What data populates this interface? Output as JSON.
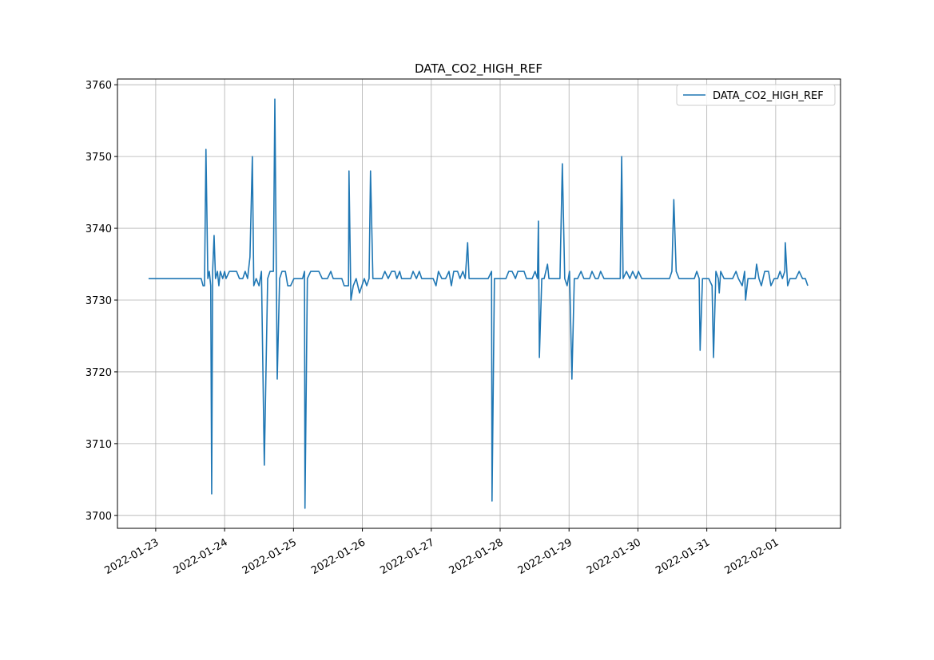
{
  "chart_data": {
    "type": "line",
    "title": "DATA_CO2_HIGH_REF",
    "x": [
      "2022-01-22T21:30",
      "2022-01-23T15:50",
      "2022-01-23T16:30",
      "2022-01-23T17:00",
      "2022-01-23T17:30",
      "2022-01-23T18:10",
      "2022-01-23T18:40",
      "2022-01-23T19:10",
      "2022-01-23T19:30",
      "2022-01-23T19:50",
      "2022-01-23T20:20",
      "2022-01-23T20:50",
      "2022-01-23T21:30",
      "2022-01-23T22:00",
      "2022-01-23T22:30",
      "2022-01-23T23:20",
      "2022-01-24T00:00",
      "2022-01-24T00:30",
      "2022-01-24T01:40",
      "2022-01-24T04:10",
      "2022-01-24T05:10",
      "2022-01-24T06:20",
      "2022-01-24T07:10",
      "2022-01-24T08:00",
      "2022-01-24T08:50",
      "2022-01-24T09:40",
      "2022-01-24T10:10",
      "2022-01-24T11:00",
      "2022-01-24T12:00",
      "2022-01-24T12:50",
      "2022-01-24T13:50",
      "2022-01-24T15:00",
      "2022-01-24T15:50",
      "2022-01-24T17:00",
      "2022-01-24T17:30",
      "2022-01-24T18:20",
      "2022-01-24T19:10",
      "2022-01-24T20:00",
      "2022-01-24T21:10",
      "2022-01-24T22:00",
      "2022-01-24T23:00",
      "2022-01-25T00:10",
      "2022-01-25T03:10",
      "2022-01-25T03:50",
      "2022-01-25T04:00",
      "2022-01-25T04:50",
      "2022-01-25T06:00",
      "2022-01-25T08:50",
      "2022-01-25T10:00",
      "2022-01-25T11:50",
      "2022-01-25T13:00",
      "2022-01-25T13:50",
      "2022-01-25T16:50",
      "2022-01-25T17:40",
      "2022-01-25T19:10",
      "2022-01-25T19:20",
      "2022-01-25T20:00",
      "2022-01-25T20:50",
      "2022-01-25T21:50",
      "2022-01-25T23:00",
      "2022-01-25T23:50",
      "2022-01-26T00:40",
      "2022-01-26T01:30",
      "2022-01-26T02:20",
      "2022-01-26T02:50",
      "2022-01-26T03:40",
      "2022-01-26T06:50",
      "2022-01-26T07:50",
      "2022-01-26T09:00",
      "2022-01-26T10:10",
      "2022-01-26T11:20",
      "2022-01-26T12:00",
      "2022-01-26T13:00",
      "2022-01-26T13:40",
      "2022-01-26T16:50",
      "2022-01-26T17:40",
      "2022-01-26T18:50",
      "2022-01-26T19:50",
      "2022-01-26T20:40",
      "2022-01-27T00:40",
      "2022-01-27T01:40",
      "2022-01-27T02:30",
      "2022-01-27T03:40",
      "2022-01-27T05:00",
      "2022-01-27T06:10",
      "2022-01-27T07:00",
      "2022-01-27T07:50",
      "2022-01-27T09:10",
      "2022-01-27T10:00",
      "2022-01-27T11:00",
      "2022-01-27T11:50",
      "2022-01-27T12:40",
      "2022-01-27T13:10",
      "2022-01-27T19:50",
      "2022-01-27T21:00",
      "2022-01-27T21:10",
      "2022-01-27T22:00",
      "2022-01-28T02:00",
      "2022-01-28T03:00",
      "2022-01-28T04:10",
      "2022-01-28T05:20",
      "2022-01-28T06:10",
      "2022-01-28T08:20",
      "2022-01-28T09:10",
      "2022-01-28T11:10",
      "2022-01-28T12:10",
      "2022-01-28T13:00",
      "2022-01-28T13:20",
      "2022-01-28T13:40",
      "2022-01-28T14:30",
      "2022-01-28T15:20",
      "2022-01-28T16:30",
      "2022-01-28T17:00",
      "2022-01-28T20:50",
      "2022-01-28T21:40",
      "2022-01-28T22:30",
      "2022-01-28T23:20",
      "2022-01-29T00:10",
      "2022-01-29T01:00",
      "2022-01-29T01:50",
      "2022-01-29T03:00",
      "2022-01-29T04:10",
      "2022-01-29T05:10",
      "2022-01-29T07:10",
      "2022-01-29T08:00",
      "2022-01-29T09:10",
      "2022-01-29T10:10",
      "2022-01-29T11:00",
      "2022-01-29T12:10",
      "2022-01-29T17:50",
      "2022-01-29T18:20",
      "2022-01-29T18:50",
      "2022-01-29T20:00",
      "2022-01-29T21:10",
      "2022-01-29T22:10",
      "2022-01-29T23:20",
      "2022-01-30T00:10",
      "2022-01-30T01:20",
      "2022-01-30T11:00",
      "2022-01-30T11:50",
      "2022-01-30T12:30",
      "2022-01-30T13:20",
      "2022-01-30T14:20",
      "2022-01-30T19:40",
      "2022-01-30T20:30",
      "2022-01-30T21:20",
      "2022-01-30T21:40",
      "2022-01-30T22:30",
      "2022-01-31T00:40",
      "2022-01-31T01:50",
      "2022-01-31T02:20",
      "2022-01-31T03:10",
      "2022-01-31T04:00",
      "2022-01-31T04:20",
      "2022-01-31T04:50",
      "2022-01-31T06:00",
      "2022-01-31T09:00",
      "2022-01-31T10:10",
      "2022-01-31T11:00",
      "2022-01-31T12:20",
      "2022-01-31T13:10",
      "2022-01-31T13:30",
      "2022-01-31T14:20",
      "2022-01-31T16:50",
      "2022-01-31T17:20",
      "2022-01-31T18:10",
      "2022-01-31T19:00",
      "2022-01-31T20:10",
      "2022-01-31T21:30",
      "2022-01-31T22:20",
      "2022-01-31T23:30",
      "2022-02-01T00:40",
      "2022-02-01T01:30",
      "2022-02-01T02:20",
      "2022-02-01T03:10",
      "2022-02-01T03:20",
      "2022-02-01T04:10",
      "2022-02-01T05:00",
      "2022-02-01T07:00",
      "2022-02-01T08:10",
      "2022-02-01T09:20",
      "2022-02-01T10:20",
      "2022-02-01T11:10"
    ],
    "series": [
      {
        "name": "DATA_CO2_HIGH_REF",
        "color": "#1f77b4",
        "values": [
          3733,
          3733,
          3732,
          3732,
          3751,
          3733,
          3734,
          3732,
          3703,
          3734,
          3739,
          3733,
          3734,
          3732,
          3734,
          3733,
          3734,
          3733,
          3734,
          3734,
          3733,
          3733,
          3734,
          3733,
          3736,
          3750,
          3732,
          3733,
          3732,
          3734,
          3707,
          3733,
          3734,
          3734,
          3758,
          3719,
          3733,
          3734,
          3734,
          3732,
          3732,
          3733,
          3733,
          3734,
          3701,
          3733,
          3734,
          3734,
          3733,
          3733,
          3734,
          3733,
          3733,
          3732,
          3732,
          3748,
          3730,
          3732,
          3733,
          3731,
          3732,
          3733,
          3732,
          3733,
          3748,
          3733,
          3733,
          3734,
          3733,
          3734,
          3734,
          3733,
          3734,
          3733,
          3733,
          3734,
          3733,
          3734,
          3733,
          3733,
          3732,
          3734,
          3733,
          3733,
          3734,
          3732,
          3734,
          3734,
          3733,
          3734,
          3733,
          3738,
          3733,
          3733,
          3734,
          3702,
          3733,
          3733,
          3734,
          3734,
          3733,
          3734,
          3734,
          3733,
          3733,
          3734,
          3733,
          3741,
          3722,
          3733,
          3733,
          3735,
          3733,
          3733,
          3749,
          3733,
          3732,
          3734,
          3719,
          3733,
          3733,
          3734,
          3733,
          3733,
          3734,
          3733,
          3733,
          3734,
          3733,
          3733,
          3750,
          3733,
          3734,
          3733,
          3734,
          3733,
          3734,
          3733,
          3733,
          3734,
          3744,
          3734,
          3733,
          3733,
          3734,
          3733,
          3723,
          3733,
          3733,
          3732,
          3722,
          3734,
          3733,
          3731,
          3734,
          3733,
          3733,
          3734,
          3733,
          3732,
          3734,
          3730,
          3733,
          3733,
          3735,
          3733,
          3732,
          3734,
          3734,
          3732,
          3733,
          3733,
          3734,
          3733,
          3734,
          3738,
          3732,
          3733,
          3733,
          3734,
          3733,
          3733,
          3732
        ]
      }
    ],
    "xlim": [
      "2022-01-22T10:40",
      "2022-02-01T22:35"
    ],
    "xticks": [
      "2022-01-23",
      "2022-01-24",
      "2022-01-25",
      "2022-01-26",
      "2022-01-27",
      "2022-01-28",
      "2022-01-29",
      "2022-01-30",
      "2022-01-31",
      "2022-02-01"
    ],
    "ylim": [
      3698.2,
      3760.8
    ],
    "yticks": [
      3700,
      3710,
      3720,
      3730,
      3740,
      3750,
      3760
    ],
    "grid": true,
    "legend": "upper right"
  }
}
